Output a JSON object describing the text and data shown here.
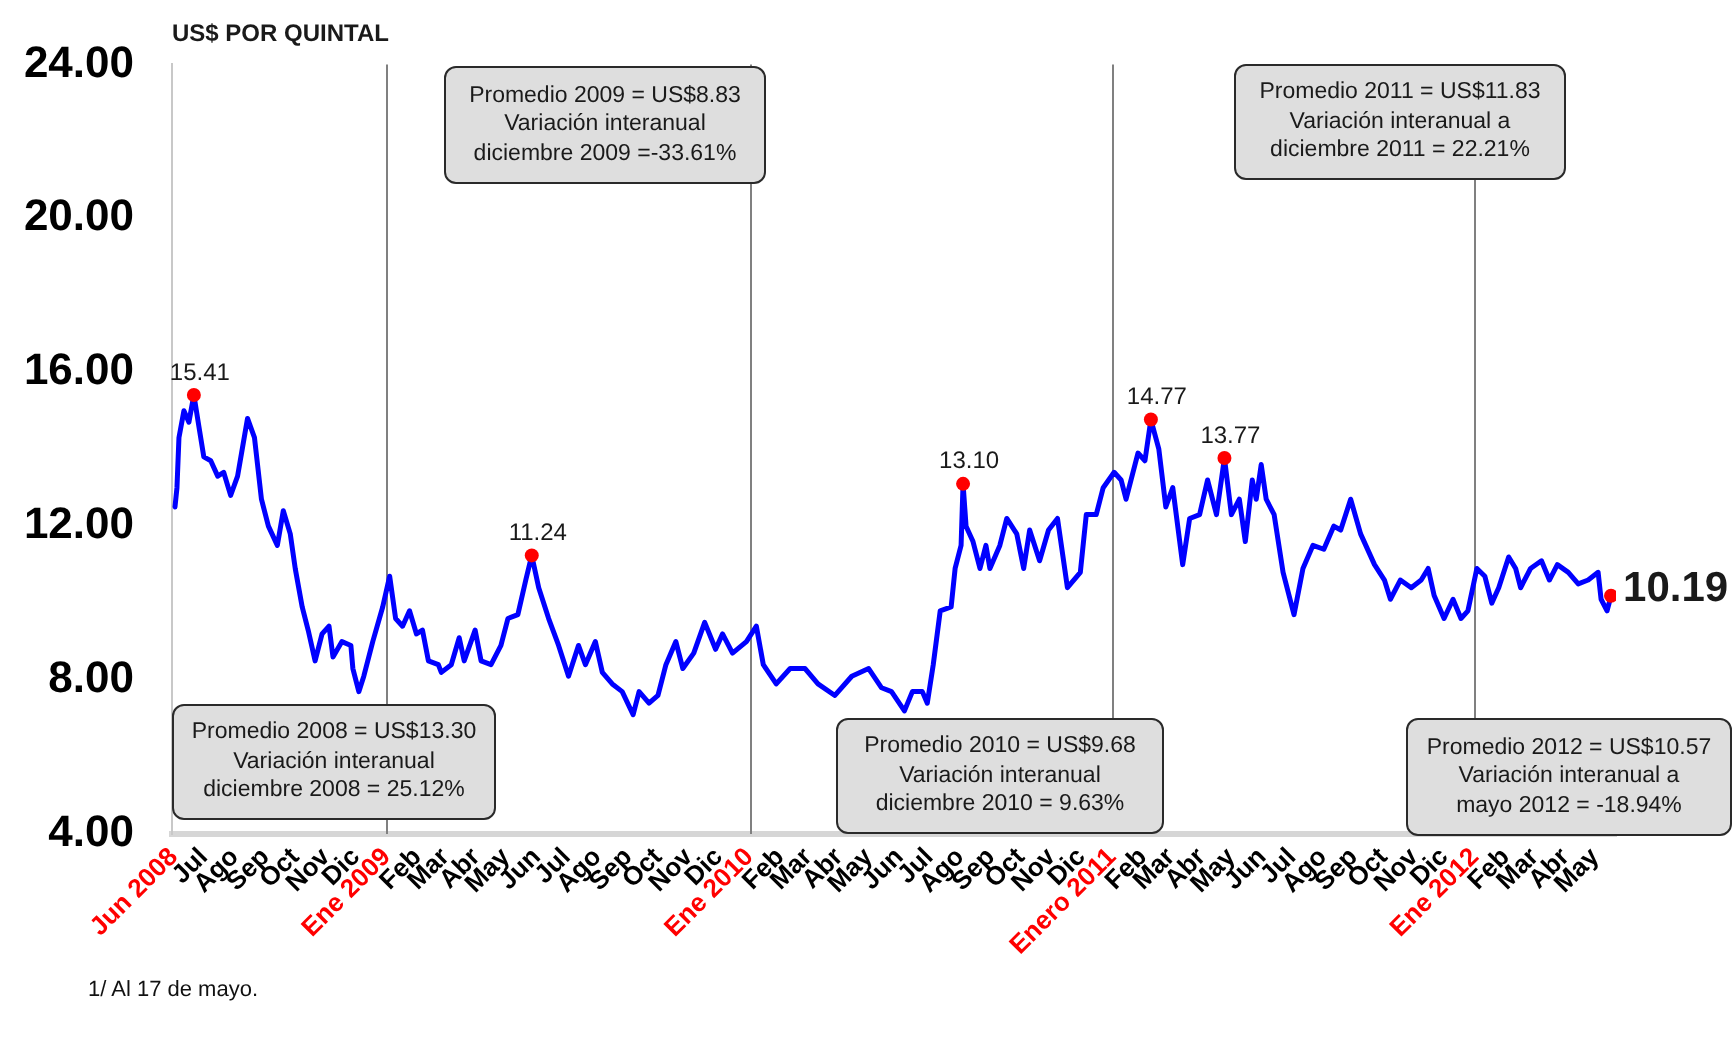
{
  "chart_data": {
    "type": "line",
    "ylabel": "US$ POR QUINTAL",
    "xlim": [
      "2008-05-30",
      "2012-05-22"
    ],
    "xticks": [
      {
        "value": "2008-06",
        "label": "Jun 2008"
      },
      {
        "value": "2008-07",
        "label": "Jul"
      },
      {
        "value": "2008-08",
        "label": "Ago"
      },
      {
        "value": "2008-09",
        "label": "Sep"
      },
      {
        "value": "2008-10",
        "label": "Oct"
      },
      {
        "value": "2008-11",
        "label": "Nov"
      },
      {
        "value": "2008-12",
        "label": "Dic"
      },
      {
        "value": "2009-01",
        "label": "Ene 2009"
      },
      {
        "value": "2009-02",
        "label": "Feb"
      },
      {
        "value": "2009-03",
        "label": "Mar"
      },
      {
        "value": "2009-04",
        "label": "Abr"
      },
      {
        "value": "2009-05",
        "label": "May"
      },
      {
        "value": "2009-06",
        "label": "Jun"
      },
      {
        "value": "2009-07",
        "label": "Jul"
      },
      {
        "value": "2009-08",
        "label": "Ago"
      },
      {
        "value": "2009-09",
        "label": "Sep"
      },
      {
        "value": "2009-10",
        "label": "Oct"
      },
      {
        "value": "2009-11",
        "label": "Nov"
      },
      {
        "value": "2009-12",
        "label": "Dic"
      },
      {
        "value": "2010-01",
        "label": "Ene 2010"
      },
      {
        "value": "2010-02",
        "label": "Feb"
      },
      {
        "value": "2010-03",
        "label": "Mar"
      },
      {
        "value": "2010-04",
        "label": "Abr"
      },
      {
        "value": "2010-05",
        "label": "May"
      },
      {
        "value": "2010-06",
        "label": "Jun"
      },
      {
        "value": "2010-07",
        "label": "Jul"
      },
      {
        "value": "2010-08",
        "label": "Ago"
      },
      {
        "value": "2010-09",
        "label": "Sep"
      },
      {
        "value": "2010-10",
        "label": "Oct"
      },
      {
        "value": "2010-11",
        "label": "Nov"
      },
      {
        "value": "2010-12",
        "label": "Dic"
      },
      {
        "value": "2011-01",
        "label": "Enero 2011"
      },
      {
        "value": "2011-02",
        "label": "Feb"
      },
      {
        "value": "2011-03",
        "label": "Mar"
      },
      {
        "value": "2011-04",
        "label": "Abr"
      },
      {
        "value": "2011-05",
        "label": "May"
      },
      {
        "value": "2011-06",
        "label": "Jun"
      },
      {
        "value": "2011-07",
        "label": "Jul"
      },
      {
        "value": "2011-08",
        "label": "Ago"
      },
      {
        "value": "2011-09",
        "label": "Sep"
      },
      {
        "value": "2011-10",
        "label": "Oct"
      },
      {
        "value": "2011-11",
        "label": "Nov"
      },
      {
        "value": "2011-12",
        "label": "Dic"
      },
      {
        "value": "2012-01",
        "label": "Ene 2012"
      },
      {
        "value": "2012-02",
        "label": "Feb"
      },
      {
        "value": "2012-03",
        "label": "Mar"
      },
      {
        "value": "2012-04",
        "label": "Abr"
      },
      {
        "value": "2012-05",
        "label": "May"
      }
    ],
    "ylim": [
      4,
      24
    ],
    "yticks": [
      {
        "value": 4,
        "label": "4.00"
      },
      {
        "value": 8,
        "label": "8.00"
      },
      {
        "value": 12,
        "label": "12.00"
      },
      {
        "value": 16,
        "label": "16.00"
      },
      {
        "value": 20,
        "label": "20.00"
      },
      {
        "value": 24,
        "label": "24.00"
      }
    ],
    "ref_lines": [
      {
        "axis": "x",
        "value": "2009-01",
        "color": "#808080"
      },
      {
        "axis": "x",
        "value": "2010-01",
        "color": "#808080"
      },
      {
        "axis": "x",
        "value": "2011-01",
        "color": "#808080"
      },
      {
        "axis": "x",
        "value": "2012-01",
        "color": "#808080"
      }
    ],
    "series": [
      {
        "color": "#0000ff",
        "x": [
          "2008-06-02",
          "2008-06-04",
          "2008-06-06",
          "2008-06-11",
          "2008-06-16",
          "2008-06-21",
          "2008-06-26",
          "2008-07-01",
          "2008-07-08",
          "2008-07-15",
          "2008-07-21",
          "2008-07-28",
          "2008-08-04",
          "2008-08-08",
          "2008-08-14",
          "2008-08-21",
          "2008-08-28",
          "2008-09-04",
          "2008-09-13",
          "2008-09-19",
          "2008-09-26",
          "2008-10-01",
          "2008-10-08",
          "2008-10-14",
          "2008-10-21",
          "2008-10-28",
          "2008-11-04",
          "2008-11-08",
          "2008-11-17",
          "2008-11-26",
          "2008-11-28",
          "2008-12-04",
          "2008-12-09",
          "2008-12-18",
          "2008-12-28",
          "2009-01-04",
          "2009-01-10",
          "2009-01-17",
          "2009-01-24",
          "2009-01-31",
          "2009-02-06",
          "2009-02-12",
          "2009-02-22",
          "2009-02-25",
          "2009-03-07",
          "2009-03-15",
          "2009-03-20",
          "2009-03-31",
          "2009-04-06",
          "2009-04-16",
          "2009-04-26",
          "2009-05-03",
          "2009-05-13",
          "2009-05-21",
          "2009-05-27",
          "2009-06-03",
          "2009-06-13",
          "2009-06-23",
          "2009-07-03",
          "2009-07-13",
          "2009-07-20",
          "2009-07-30",
          "2009-08-06",
          "2009-08-16",
          "2009-08-26",
          "2009-09-06",
          "2009-09-12",
          "2009-09-22",
          "2009-10-01",
          "2009-10-09",
          "2009-10-19",
          "2009-10-26",
          "2009-11-06",
          "2009-11-17",
          "2009-11-28",
          "2009-12-05",
          "2009-12-15",
          "2009-12-29",
          "2010-01-08",
          "2010-01-15",
          "2010-01-28",
          "2010-02-11",
          "2010-02-26",
          "2010-03-11",
          "2010-03-28",
          "2010-04-14",
          "2010-05-01",
          "2010-05-14",
          "2010-05-24",
          "2010-06-06",
          "2010-06-14",
          "2010-06-24",
          "2010-06-29",
          "2010-07-05",
          "2010-07-12",
          "2010-07-23",
          "2010-07-27",
          "2010-08-02",
          "2010-08-04",
          "2010-08-07",
          "2010-08-14",
          "2010-08-21",
          "2010-08-27",
          "2010-08-31",
          "2010-09-10",
          "2010-09-17",
          "2010-09-27",
          "2010-10-04",
          "2010-10-10",
          "2010-10-20",
          "2010-10-29",
          "2010-11-07",
          "2010-11-17",
          "2010-11-30",
          "2010-12-06",
          "2010-12-16",
          "2010-12-23",
          "2011-01-03",
          "2011-01-10",
          "2011-01-15",
          "2011-01-27",
          "2011-02-03",
          "2011-02-09",
          "2011-02-17",
          "2011-02-24",
          "2011-03-03",
          "2011-03-13",
          "2011-03-20",
          "2011-03-30",
          "2011-04-07",
          "2011-04-16",
          "2011-04-24",
          "2011-05-01",
          "2011-05-09",
          "2011-05-15",
          "2011-05-22",
          "2011-05-26",
          "2011-05-31",
          "2011-06-05",
          "2011-06-13",
          "2011-06-22",
          "2011-07-03",
          "2011-07-12",
          "2011-07-22",
          "2011-08-02",
          "2011-08-12",
          "2011-08-19",
          "2011-08-29",
          "2011-09-08",
          "2011-09-22",
          "2011-10-02",
          "2011-10-08",
          "2011-10-18",
          "2011-10-29",
          "2011-11-08",
          "2011-11-15",
          "2011-11-21",
          "2011-12-01",
          "2011-12-10",
          "2011-12-18",
          "2011-12-25",
          "2012-01-03",
          "2012-01-11",
          "2012-01-18",
          "2012-01-25",
          "2012-02-04",
          "2012-02-11",
          "2012-02-16",
          "2012-02-26",
          "2012-03-08",
          "2012-03-16",
          "2012-03-24",
          "2012-04-04",
          "2012-04-14",
          "2012-04-24",
          "2012-05-04",
          "2012-05-07",
          "2012-05-13",
          "2012-05-17"
        ],
        "values": [
          12.5,
          13.0,
          14.3,
          15.0,
          14.7,
          15.41,
          14.6,
          13.8,
          13.7,
          13.3,
          13.4,
          12.8,
          13.3,
          13.9,
          14.8,
          14.3,
          12.7,
          12.0,
          11.5,
          12.4,
          11.8,
          10.9,
          9.9,
          9.3,
          8.5,
          9.2,
          9.4,
          8.6,
          9.0,
          8.9,
          8.3,
          7.7,
          8.1,
          9.0,
          9.9,
          10.7,
          9.6,
          9.4,
          9.8,
          9.2,
          9.3,
          8.5,
          8.4,
          8.2,
          8.4,
          9.1,
          8.5,
          9.3,
          8.5,
          8.4,
          8.9,
          9.6,
          9.7,
          10.6,
          11.24,
          10.4,
          9.6,
          8.9,
          8.1,
          8.9,
          8.4,
          9.0,
          8.2,
          7.9,
          7.7,
          7.1,
          7.7,
          7.4,
          7.6,
          8.4,
          9.0,
          8.3,
          8.7,
          9.5,
          8.8,
          9.2,
          8.7,
          9.0,
          9.4,
          8.4,
          7.9,
          8.3,
          8.3,
          7.9,
          7.6,
          8.1,
          8.3,
          7.8,
          7.7,
          7.2,
          7.7,
          7.7,
          7.4,
          8.4,
          9.8,
          9.9,
          10.9,
          11.5,
          13.1,
          12.0,
          11.6,
          10.9,
          11.5,
          10.9,
          11.5,
          12.2,
          11.8,
          10.9,
          11.9,
          11.1,
          11.9,
          12.2,
          10.4,
          10.8,
          12.3,
          12.3,
          13.0,
          13.4,
          13.2,
          12.7,
          13.9,
          13.7,
          14.77,
          14.0,
          12.5,
          13.0,
          11.0,
          12.2,
          12.3,
          13.2,
          12.3,
          13.77,
          12.3,
          12.7,
          11.6,
          13.2,
          12.7,
          13.6,
          12.7,
          12.3,
          10.8,
          9.7,
          10.9,
          11.5,
          11.4,
          12.0,
          11.9,
          12.7,
          11.8,
          11.0,
          10.6,
          10.1,
          10.6,
          10.4,
          10.6,
          10.9,
          10.2,
          9.6,
          10.1,
          9.6,
          9.8,
          10.9,
          10.7,
          10.0,
          10.4,
          11.2,
          10.9,
          10.4,
          10.9,
          11.1,
          10.6,
          11.0,
          10.8,
          10.5,
          10.6,
          10.8,
          10.1,
          9.8,
          10.19
        ]
      },
      {
        "type": "scatter",
        "color": "#ff0000",
        "marker": "circle",
        "x": [
          "2008-06-21",
          "2009-05-27",
          "2010-08-04",
          "2011-02-09",
          "2011-04-24",
          "2012-05-17"
        ],
        "values": [
          15.41,
          11.24,
          13.1,
          14.77,
          13.77,
          10.19
        ],
        "value_labels": [
          "15.41",
          "11.24",
          "13.10",
          "14.77",
          "13.77",
          "10.19"
        ]
      }
    ],
    "annotations": [
      "Promedio 2008 = US$13.30\nVariación interanual\ndiciembre 2008 = 25.12%",
      "Promedio 2009 = US$8.83\nVariación interanual\ndiciembre 2009 =-33.61%",
      "Promedio 2010 = US$9.68\nVariación interanual\ndiciembre 2010 = 9.63%",
      "Promedio 2011 = US$11.83\nVariación interanual a\ndiciembre 2011 = 22.21%",
      "Promedio 2012 = US$10.57\nVariación interanual a\nmayo 2012 = -18.94%",
      "1/ Al 17 de mayo."
    ]
  }
}
